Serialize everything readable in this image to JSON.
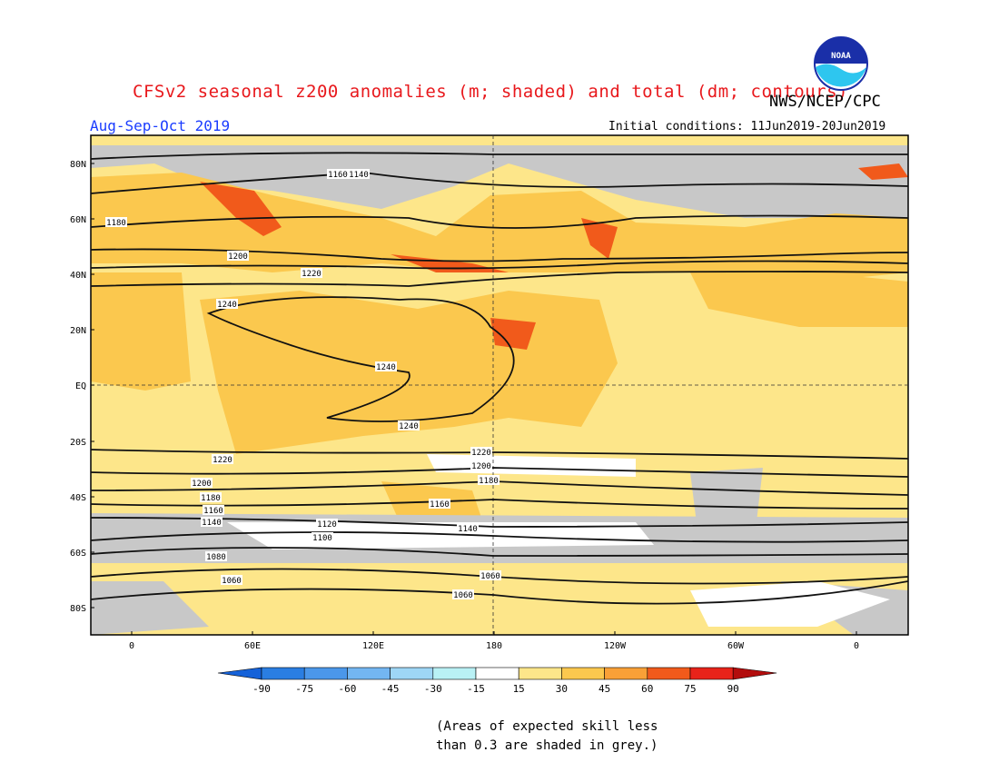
{
  "header": {
    "title": "CFSv2 seasonal z200 anomalies (m; shaded) and total (dm; contours)",
    "agency": "NWS/NCEP/CPC",
    "season": "Aug-Sep-Oct 2019",
    "initial_conditions": "Initial conditions: 11Jun2019-20Jun2019",
    "logo_text": "NOAA"
  },
  "map": {
    "lat_labels": [
      "80N",
      "60N",
      "40N",
      "20N",
      "EQ",
      "20S",
      "40S",
      "60S",
      "80S"
    ],
    "lon_labels": [
      "0",
      "60E",
      "120E",
      "180",
      "120W",
      "60W",
      "0"
    ],
    "contour_labels": [
      "1140",
      "1160",
      "1180",
      "1200",
      "1220",
      "1240",
      "1220",
      "1200",
      "1180",
      "1160",
      "1140",
      "1120",
      "1100",
      "1080",
      "1060"
    ],
    "colors": {
      "c15": "#fde68a",
      "c30": "#fbc84e",
      "c45": "#f9a037",
      "c60": "#f15a1b",
      "grey": "#c8c8c8",
      "white": "#ffffff"
    }
  },
  "colorbar": {
    "ticks": [
      "-90",
      "-75",
      "-60",
      "-45",
      "-30",
      "-15",
      "15",
      "30",
      "45",
      "60",
      "75",
      "90"
    ],
    "colors": [
      "#1562d9",
      "#2a7ee2",
      "#4b97ea",
      "#73b6f2",
      "#9ed6f6",
      "#b9f1f5",
      "#ffffff",
      "#fde68a",
      "#fbc84e",
      "#f9a037",
      "#f15a1b",
      "#e8231a",
      "#b30d0d"
    ]
  },
  "footnote": {
    "line1": "(Areas of expected skill less",
    "line2": "than 0.3 are shaded in grey.)"
  }
}
